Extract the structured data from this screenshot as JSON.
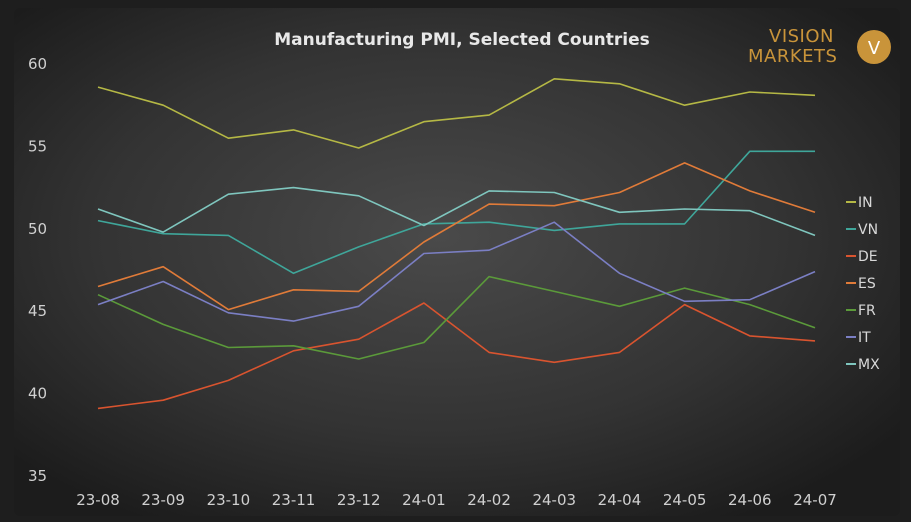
{
  "chart_data": {
    "type": "line",
    "title": "Manufacturing PMI, Selected Countries",
    "xlabel": "",
    "ylabel": "",
    "ylim": [
      35,
      60
    ],
    "yticks": [
      35,
      40,
      45,
      50,
      55,
      60
    ],
    "grid": false,
    "legend_position": "right",
    "categories": [
      "23-08",
      "23-09",
      "23-10",
      "23-11",
      "23-12",
      "24-01",
      "24-02",
      "24-03",
      "24-04",
      "24-05",
      "24-06",
      "24-07"
    ],
    "series": [
      {
        "name": "IN",
        "color": "#b5b845",
        "values": [
          58.6,
          57.5,
          55.5,
          56.0,
          54.9,
          56.5,
          56.9,
          59.1,
          58.8,
          57.5,
          58.3,
          58.1
        ]
      },
      {
        "name": "VN",
        "color": "#3fa69a",
        "values": [
          50.5,
          49.7,
          49.6,
          47.3,
          48.9,
          50.3,
          50.4,
          49.9,
          50.3,
          50.3,
          54.7,
          54.7
        ]
      },
      {
        "name": "DE",
        "color": "#d9542f",
        "values": [
          39.1,
          39.6,
          40.8,
          42.6,
          43.3,
          45.5,
          42.5,
          41.9,
          42.5,
          45.4,
          43.5,
          43.2
        ]
      },
      {
        "name": "ES",
        "color": "#e07b39",
        "values": [
          46.5,
          47.7,
          45.1,
          46.3,
          46.2,
          49.2,
          51.5,
          51.4,
          52.2,
          54.0,
          52.3,
          51.0
        ]
      },
      {
        "name": "FR",
        "color": "#5b9a3a",
        "values": [
          46.0,
          44.2,
          42.8,
          42.9,
          42.1,
          43.1,
          47.1,
          46.2,
          45.3,
          46.4,
          45.4,
          44.0
        ]
      },
      {
        "name": "IT",
        "color": "#7b7fc4",
        "values": [
          45.4,
          46.8,
          44.9,
          44.4,
          45.3,
          48.5,
          48.7,
          50.4,
          47.3,
          45.6,
          45.7,
          47.4
        ]
      },
      {
        "name": "MX",
        "color": "#7fc6be",
        "values": [
          51.2,
          49.8,
          52.1,
          52.5,
          52.0,
          50.2,
          52.3,
          52.2,
          51.0,
          51.2,
          51.1,
          49.6
        ]
      }
    ]
  },
  "logo": {
    "line1": "VISION",
    "line2": "MARKETS",
    "badge_glyph": "V",
    "accent_color": "#c9943a"
  }
}
